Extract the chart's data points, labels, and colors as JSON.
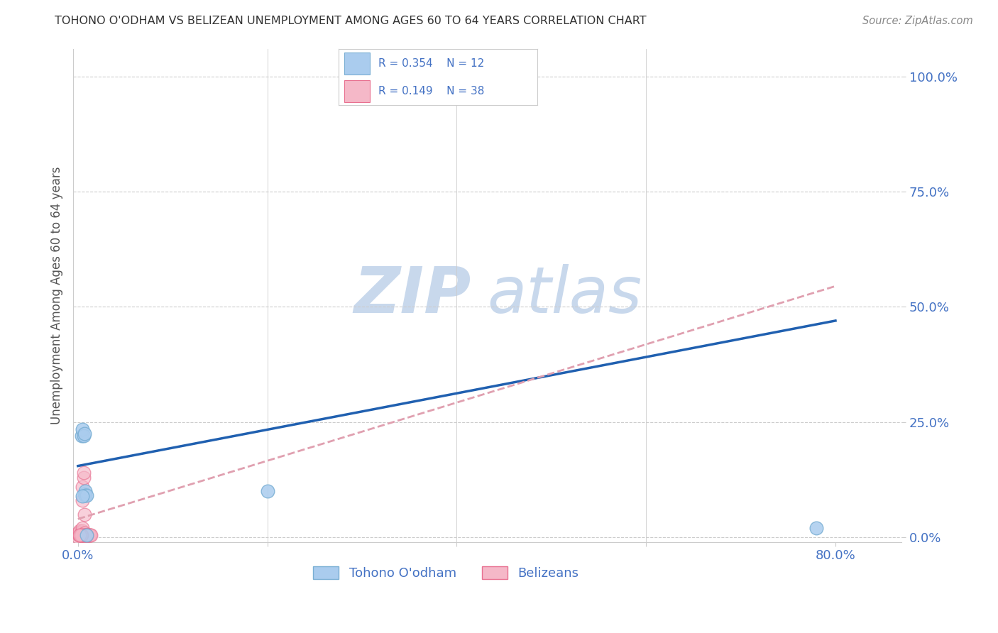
{
  "title": "TOHONO O'ODHAM VS BELIZEAN UNEMPLOYMENT AMONG AGES 60 TO 64 YEARS CORRELATION CHART",
  "source": "Source: ZipAtlas.com",
  "ylabel": "Unemployment Among Ages 60 to 64 years",
  "xlim": [
    -0.005,
    0.87
  ],
  "ylim": [
    -0.01,
    1.06
  ],
  "xticks": [
    0.0,
    0.2,
    0.4,
    0.6,
    0.8
  ],
  "xtick_labels": [
    "0.0%",
    "",
    "",
    "",
    "80.0%"
  ],
  "yticks": [
    0.0,
    0.25,
    0.5,
    0.75,
    1.0
  ],
  "ytick_labels": [
    "0.0%",
    "25.0%",
    "50.0%",
    "75.0%",
    "100.0%"
  ],
  "tohono_scatter_x": [
    0.004,
    0.005,
    0.006,
    0.007,
    0.007,
    0.008,
    0.008,
    0.009,
    0.2,
    0.009,
    0.78,
    0.005
  ],
  "tohono_scatter_y": [
    0.22,
    0.235,
    0.22,
    0.225,
    0.095,
    0.1,
    0.092,
    0.092,
    0.1,
    0.005,
    0.02,
    0.09
  ],
  "belizean_scatter_x": [
    0.0,
    0.0,
    0.001,
    0.001,
    0.002,
    0.002,
    0.003,
    0.003,
    0.004,
    0.004,
    0.005,
    0.005,
    0.006,
    0.006,
    0.007,
    0.007,
    0.008,
    0.008,
    0.009,
    0.009,
    0.01,
    0.01,
    0.011,
    0.011,
    0.012,
    0.012,
    0.013,
    0.014,
    0.005,
    0.005,
    0.006,
    0.006,
    0.007,
    0.008,
    0.009,
    0.004,
    0.003,
    0.002
  ],
  "belizean_scatter_y": [
    0.0,
    0.01,
    0.005,
    0.01,
    0.005,
    0.015,
    0.005,
    0.005,
    0.005,
    0.01,
    0.015,
    0.02,
    0.005,
    0.005,
    0.01,
    0.005,
    0.005,
    0.005,
    0.005,
    0.005,
    0.005,
    0.005,
    0.005,
    0.005,
    0.005,
    0.005,
    0.005,
    0.005,
    0.08,
    0.11,
    0.13,
    0.14,
    0.05,
    0.005,
    0.005,
    0.005,
    0.005,
    0.005
  ],
  "tohono_line_x": [
    0.0,
    0.8
  ],
  "tohono_line_y": [
    0.155,
    0.47
  ],
  "belizean_line_x": [
    0.0,
    0.8
  ],
  "belizean_line_y": [
    0.04,
    0.545
  ],
  "tohono_scatter_color": "#aaccee",
  "tohono_edge_color": "#7aafd4",
  "belizean_scatter_color": "#f5b8c8",
  "belizean_edge_color": "#e87090",
  "tohono_line_color": "#2060b0",
  "belizean_line_color": "#e0a0b0",
  "legend_R_tohono": "R = 0.354",
  "legend_N_tohono": "N = 12",
  "legend_R_belizean": "R = 0.149",
  "legend_N_belizean": "N = 38",
  "legend_box_color": "#aaccee",
  "legend_box_edge_tohono": "#7aafd4",
  "legend_box_pink": "#f5b8c8",
  "legend_box_edge_belizean": "#e87090",
  "background_color": "#ffffff",
  "grid_color": "#cccccc",
  "title_color": "#333333",
  "axis_label_color": "#555555",
  "tick_color": "#4472c4",
  "source_color": "#888888",
  "watermark_zip_color": "#c8d8ec",
  "watermark_atlas_color": "#c8d8ec"
}
